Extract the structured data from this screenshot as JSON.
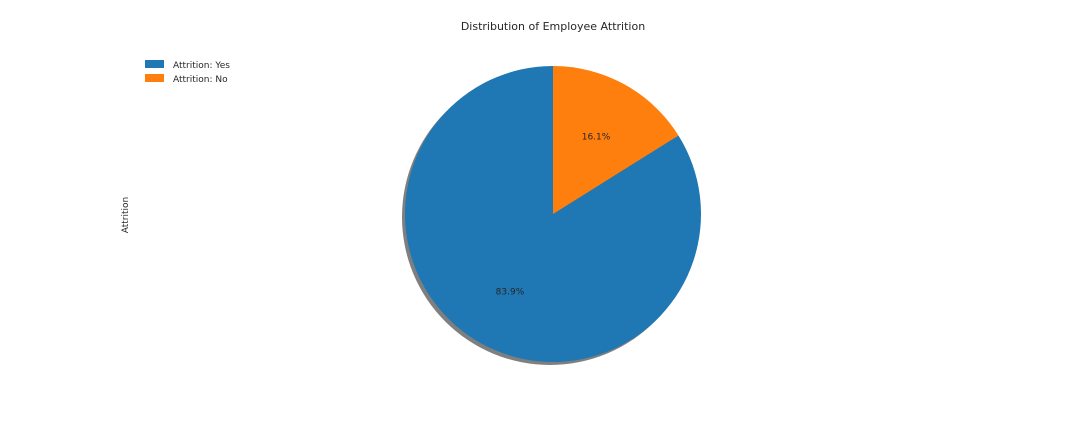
{
  "chart_data": {
    "type": "pie",
    "title": "Distribution of Employee Attrition",
    "ylabel": "Attrition",
    "legend": {
      "placement": "top-left",
      "entries": [
        "Attrition: Yes",
        "Attrition: No"
      ]
    },
    "slices": [
      {
        "label": "Attrition: Yes",
        "value": 83.9,
        "pct_label": "83.9%",
        "color": "#1f77b4"
      },
      {
        "label": "Attrition: No",
        "value": 16.1,
        "pct_label": "16.1%",
        "color": "#ff7f0e"
      }
    ],
    "start_angle_deg": 90,
    "direction": "counterclockwise",
    "shadow": true
  }
}
